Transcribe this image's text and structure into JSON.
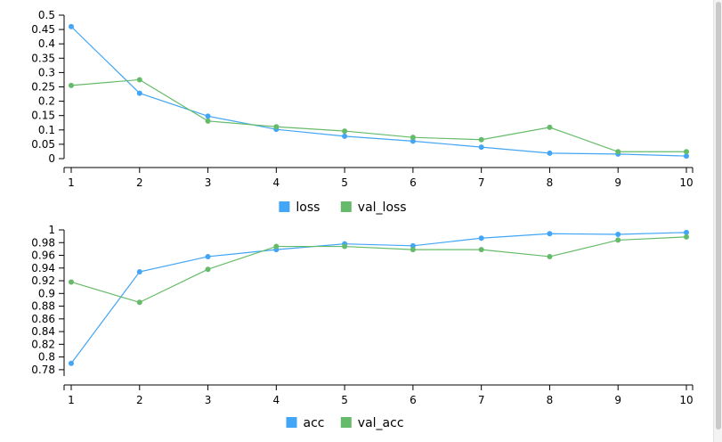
{
  "colors": {
    "series1": "#42a5f5",
    "series2": "#66bb6a",
    "axis": "#000000"
  },
  "chart_data": [
    {
      "type": "line",
      "x": [
        1,
        2,
        3,
        4,
        5,
        6,
        7,
        8,
        9,
        10
      ],
      "xticks": [
        "1",
        "2",
        "3",
        "4",
        "5",
        "6",
        "7",
        "8",
        "9",
        "10"
      ],
      "yticks": [
        "0",
        "0.05",
        "0.1",
        "0.15",
        "0.2",
        "0.25",
        "0.3",
        "0.35",
        "0.4",
        "0.45",
        "0.5"
      ],
      "ylim": [
        0,
        0.5
      ],
      "series": [
        {
          "name": "loss",
          "values": [
            0.46,
            0.228,
            0.148,
            0.102,
            0.078,
            0.061,
            0.04,
            0.019,
            0.016,
            0.009
          ]
        },
        {
          "name": "val_loss",
          "values": [
            0.255,
            0.275,
            0.131,
            0.111,
            0.096,
            0.074,
            0.066,
            0.109,
            0.024,
            0.024
          ]
        }
      ],
      "legend": "bottom-center",
      "grid": false
    },
    {
      "type": "line",
      "x": [
        1,
        2,
        3,
        4,
        5,
        6,
        7,
        8,
        9,
        10
      ],
      "xticks": [
        "1",
        "2",
        "3",
        "4",
        "5",
        "6",
        "7",
        "8",
        "9",
        "10"
      ],
      "yticks": [
        "0.78",
        "0.8",
        "0.82",
        "0.84",
        "0.86",
        "0.88",
        "0.9",
        "0.92",
        "0.94",
        "0.96",
        "0.98",
        "1"
      ],
      "ylim": [
        0.77,
        1.0
      ],
      "series": [
        {
          "name": "acc",
          "values": [
            0.79,
            0.934,
            0.958,
            0.969,
            0.978,
            0.975,
            0.987,
            0.994,
            0.993,
            0.996
          ]
        },
        {
          "name": "val_acc",
          "values": [
            0.918,
            0.886,
            0.938,
            0.974,
            0.974,
            0.969,
            0.969,
            0.958,
            0.984,
            0.989
          ]
        }
      ],
      "legend": "bottom-center",
      "grid": false
    }
  ]
}
